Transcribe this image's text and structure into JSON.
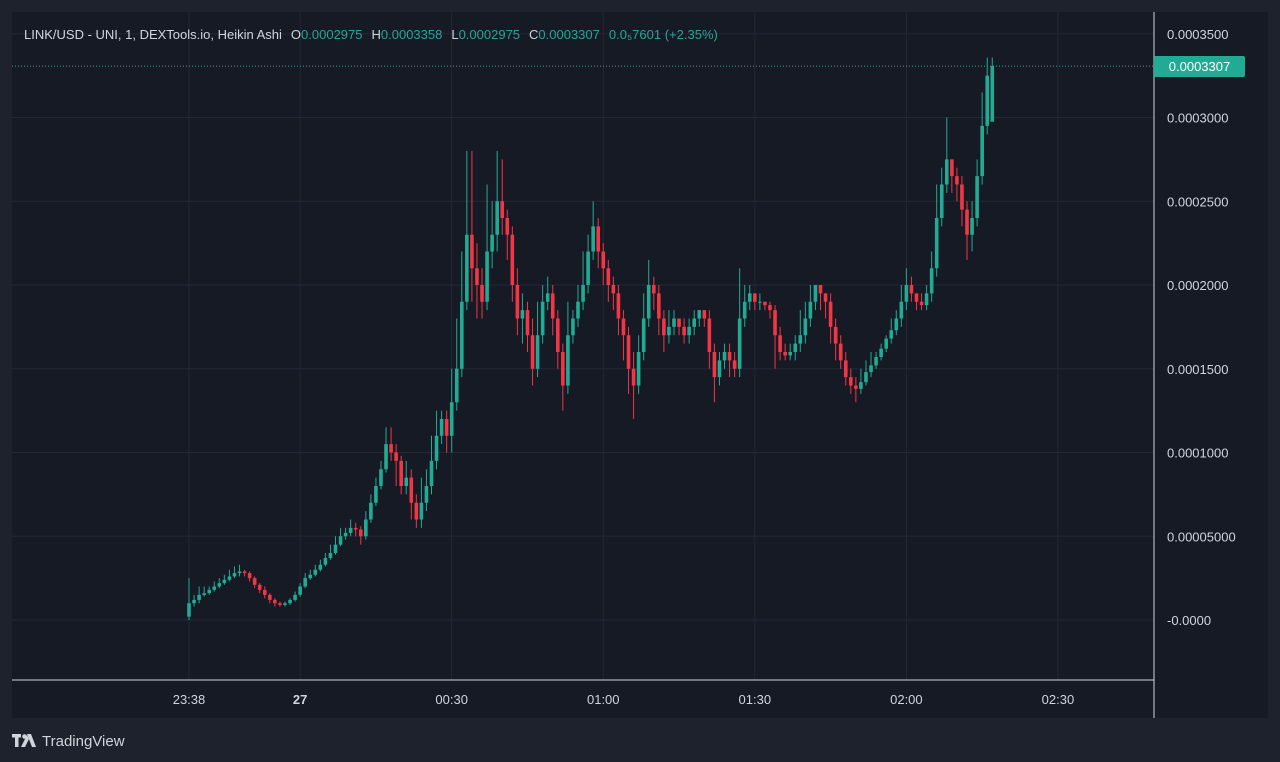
{
  "legend": {
    "symbol": "LINK/USD - UNI, 1, DEXTools.io, Heikin Ashi",
    "open_label": "O",
    "open": "0.0002975",
    "high_label": "H",
    "high": "0.0003358",
    "low_label": "L",
    "low": "0.0002975",
    "close_label": "C",
    "close": "0.0003307",
    "change": "0.0₅7601 (+2.35%)"
  },
  "last_price": "0.0003307",
  "footer": {
    "brand": "TradingView"
  },
  "colors": {
    "up": "#22ab94",
    "down": "#f23645",
    "background": "#161a25",
    "grid": "#242836"
  },
  "chart_data": {
    "type": "candlestick",
    "style": "Heikin Ashi",
    "interval_minutes": 1,
    "y_ticks": [
      {
        "value": 0.00035,
        "label": "0.0003500"
      },
      {
        "value": 0.0003,
        "label": "0.0003000"
      },
      {
        "value": 0.00025,
        "label": "0.0002500"
      },
      {
        "value": 0.0002,
        "label": "0.0002000"
      },
      {
        "value": 0.00015,
        "label": "0.0001500"
      },
      {
        "value": 0.0001,
        "label": "0.0001000"
      },
      {
        "value": 5e-05,
        "label": "0.00005000"
      },
      {
        "value": 0,
        "label": "-0.0000"
      }
    ],
    "x_ticks": [
      {
        "time": "23:38",
        "label": "23:38",
        "bold": false
      },
      {
        "time": "00:00",
        "label": "27",
        "bold": true
      },
      {
        "time": "00:30",
        "label": "00:30",
        "bold": false
      },
      {
        "time": "01:00",
        "label": "01:00",
        "bold": false
      },
      {
        "time": "01:30",
        "label": "01:30",
        "bold": false
      },
      {
        "time": "02:00",
        "label": "02:00",
        "bold": false
      },
      {
        "time": "02:30",
        "label": "02:30",
        "bold": false
      }
    ],
    "ylim": [
      -2e-05,
      0.00036
    ],
    "first_time": "23:38",
    "candles": [
      [
        2e-06,
        1e-05,
        2.5e-05,
        0.0
      ],
      [
        1e-05,
        1.2e-05,
        1.5e-05,
        8e-06
      ],
      [
        1.2e-05,
        1.5e-05,
        2e-05,
        1e-05
      ],
      [
        1.5e-05,
        1.6e-05,
        2e-05,
        1.4e-05
      ],
      [
        1.6e-05,
        1.8e-05,
        2e-05,
        1.5e-05
      ],
      [
        1.8e-05,
        2e-05,
        2.3e-05,
        1.7e-05
      ],
      [
        2e-05,
        2.2e-05,
        2.5e-05,
        1.9e-05
      ],
      [
        2.2e-05,
        2.4e-05,
        2.7e-05,
        2.1e-05
      ],
      [
        2.4e-05,
        2.6e-05,
        3e-05,
        2.3e-05
      ],
      [
        2.6e-05,
        2.8e-05,
        3.2e-05,
        2.5e-05
      ],
      [
        2.8e-05,
        2.9e-05,
        3.3e-05,
        2.6e-05
      ],
      [
        2.9e-05,
        2.8e-05,
        3e-05,
        2.6e-05
      ],
      [
        2.8e-05,
        2.5e-05,
        2.9e-05,
        2.3e-05
      ],
      [
        2.5e-05,
        2.1e-05,
        2.6e-05,
        1.9e-05
      ],
      [
        2.1e-05,
        1.8e-05,
        2.2e-05,
        1.6e-05
      ],
      [
        1.8e-05,
        1.5e-05,
        2e-05,
        1.3e-05
      ],
      [
        1.5e-05,
        1.2e-05,
        1.6e-05,
        1e-05
      ],
      [
        1.2e-05,
        1e-05,
        1.3e-05,
        8e-06
      ],
      [
        1e-05,
        9e-06,
        1.1e-05,
        8e-06
      ],
      [
        9e-06,
        1e-05,
        1.1e-05,
        8e-06
      ],
      [
        1e-05,
        1.2e-05,
        1.3e-05,
        9e-06
      ],
      [
        1.2e-05,
        1.5e-05,
        1.7e-05,
        1.1e-05
      ],
      [
        1.5e-05,
        2e-05,
        2.2e-05,
        1.4e-05
      ],
      [
        2e-05,
        2.5e-05,
        2.8e-05,
        1.9e-05
      ],
      [
        2.5e-05,
        2.7e-05,
        3e-05,
        2.4e-05
      ],
      [
        2.7e-05,
        3e-05,
        3.3e-05,
        2.6e-05
      ],
      [
        3e-05,
        3.3e-05,
        3.6e-05,
        2.9e-05
      ],
      [
        3.3e-05,
        3.7e-05,
        4e-05,
        3.2e-05
      ],
      [
        3.7e-05,
        4e-05,
        4.5e-05,
        3.6e-05
      ],
      [
        4e-05,
        4.5e-05,
        5e-05,
        3.9e-05
      ],
      [
        4.5e-05,
        5e-05,
        5.5e-05,
        4.4e-05
      ],
      [
        5e-05,
        5.2e-05,
        5.5e-05,
        4.8e-05
      ],
      [
        5.2e-05,
        5.5e-05,
        6e-05,
        5e-05
      ],
      [
        5.5e-05,
        5.4e-05,
        5.8e-05,
        5e-05
      ],
      [
        5.4e-05,
        5e-05,
        5.6e-05,
        4.5e-05
      ],
      [
        5e-05,
        6e-05,
        6.5e-05,
        4.8e-05
      ],
      [
        6e-05,
        7e-05,
        7.5e-05,
        5.8e-05
      ],
      [
        7e-05,
        8e-05,
        8.5e-05,
        6.8e-05
      ],
      [
        8e-05,
        9e-05,
        9.5e-05,
        7.8e-05
      ],
      [
        9e-05,
        0.000105,
        0.000115,
        8.8e-05
      ],
      [
        0.000105,
        0.0001,
        0.000115,
        9.5e-05
      ],
      [
        0.0001,
        9.5e-05,
        0.000105,
        8e-05
      ],
      [
        9.5e-05,
        8e-05,
        9.8e-05,
        7.5e-05
      ],
      [
        8e-05,
        8.5e-05,
        9.5e-05,
        7.5e-05
      ],
      [
        8.5e-05,
        7e-05,
        9e-05,
        6e-05
      ],
      [
        7e-05,
        6e-05,
        7.5e-05,
        5.5e-05
      ],
      [
        6e-05,
        7e-05,
        8.5e-05,
        5.5e-05
      ],
      [
        7e-05,
        8e-05,
        9e-05,
        6.5e-05
      ],
      [
        8e-05,
        9.5e-05,
        0.00011,
        7.5e-05
      ],
      [
        9.5e-05,
        0.00011,
        0.000125,
        9e-05
      ],
      [
        0.00011,
        0.00012,
        0.000125,
        0.000105
      ],
      [
        0.00012,
        0.00011,
        0.000125,
        0.0001
      ],
      [
        0.00011,
        0.00013,
        0.00015,
        0.0001
      ],
      [
        0.00013,
        0.00015,
        0.00018,
        0.000125
      ],
      [
        0.00015,
        0.00019,
        0.00022,
        0.000145
      ],
      [
        0.00019,
        0.00023,
        0.00028,
        0.000185
      ],
      [
        0.00023,
        0.00021,
        0.00028,
        0.00019
      ],
      [
        0.00021,
        0.0002,
        0.000225,
        0.00018
      ],
      [
        0.0002,
        0.00019,
        0.00021,
        0.00018
      ],
      [
        0.00019,
        0.00022,
        0.00026,
        0.000185
      ],
      [
        0.00022,
        0.00023,
        0.00025,
        0.00021
      ],
      [
        0.00023,
        0.00025,
        0.00028,
        0.00022
      ],
      [
        0.00025,
        0.00024,
        0.000275,
        0.00023
      ],
      [
        0.00024,
        0.00023,
        0.000245,
        0.000215
      ],
      [
        0.00023,
        0.0002,
        0.000235,
        0.00019
      ],
      [
        0.0002,
        0.00018,
        0.00021,
        0.00017
      ],
      [
        0.00018,
        0.000185,
        0.000195,
        0.000165
      ],
      [
        0.000185,
        0.00017,
        0.00019,
        0.00016
      ],
      [
        0.00017,
        0.00015,
        0.00018,
        0.00014
      ],
      [
        0.00015,
        0.00017,
        0.00019,
        0.000145
      ],
      [
        0.00017,
        0.00019,
        0.0002,
        0.000165
      ],
      [
        0.00019,
        0.000195,
        0.000205,
        0.000185
      ],
      [
        0.000195,
        0.00018,
        0.0002,
        0.00017
      ],
      [
        0.00018,
        0.00016,
        0.000185,
        0.00015
      ],
      [
        0.00016,
        0.00014,
        0.000165,
        0.000125
      ],
      [
        0.00014,
        0.00017,
        0.00019,
        0.000135
      ],
      [
        0.00017,
        0.00018,
        0.000185,
        0.000165
      ],
      [
        0.00018,
        0.00019,
        0.0002,
        0.000175
      ],
      [
        0.00019,
        0.0002,
        0.00022,
        0.000185
      ],
      [
        0.0002,
        0.00022,
        0.00023,
        0.000195
      ],
      [
        0.00022,
        0.000235,
        0.00025,
        0.000215
      ],
      [
        0.000235,
        0.00022,
        0.00024,
        0.00021
      ],
      [
        0.00022,
        0.00021,
        0.000225,
        0.0002
      ],
      [
        0.00021,
        0.0002,
        0.000215,
        0.00019
      ],
      [
        0.0002,
        0.000195,
        0.000205,
        0.000185
      ],
      [
        0.000195,
        0.00018,
        0.0002,
        0.00017
      ],
      [
        0.00018,
        0.00017,
        0.000185,
        0.000155
      ],
      [
        0.00017,
        0.00015,
        0.000175,
        0.000135
      ],
      [
        0.00015,
        0.00014,
        0.00016,
        0.00012
      ],
      [
        0.00014,
        0.00016,
        0.00017,
        0.000135
      ],
      [
        0.00016,
        0.00018,
        0.000195,
        0.000155
      ],
      [
        0.00018,
        0.0002,
        0.000215,
        0.000175
      ],
      [
        0.0002,
        0.000195,
        0.000205,
        0.000185
      ],
      [
        0.000195,
        0.00018,
        0.0002,
        0.00017
      ],
      [
        0.00018,
        0.00017,
        0.000185,
        0.00016
      ],
      [
        0.00017,
        0.000175,
        0.000185,
        0.000165
      ],
      [
        0.000175,
        0.00018,
        0.000185,
        0.00017
      ],
      [
        0.00018,
        0.000175,
        0.00018,
        0.00017
      ],
      [
        0.000175,
        0.00017,
        0.00018,
        0.000165
      ],
      [
        0.00017,
        0.000175,
        0.00018,
        0.000165
      ],
      [
        0.000175,
        0.00018,
        0.000185,
        0.00017
      ],
      [
        0.00018,
        0.000185,
        0.000185,
        0.000175
      ],
      [
        0.000185,
        0.00018,
        0.000185,
        0.000175
      ],
      [
        0.00018,
        0.00016,
        0.000185,
        0.00015
      ],
      [
        0.00016,
        0.000145,
        0.000165,
        0.00013
      ],
      [
        0.000145,
        0.000155,
        0.00016,
        0.00014
      ],
      [
        0.000155,
        0.00016,
        0.000165,
        0.00015
      ],
      [
        0.00016,
        0.000155,
        0.000165,
        0.000145
      ],
      [
        0.000155,
        0.00015,
        0.00016,
        0.000145
      ],
      [
        0.00015,
        0.00018,
        0.00021,
        0.000145
      ],
      [
        0.00018,
        0.00019,
        0.0002,
        0.000175
      ],
      [
        0.00019,
        0.000195,
        0.0002,
        0.000185
      ],
      [
        0.000195,
        0.00019,
        0.000195,
        0.000185
      ],
      [
        0.00019,
        0.00019,
        0.000195,
        0.000185
      ],
      [
        0.00019,
        0.000188,
        0.00019,
        0.000185
      ],
      [
        0.000188,
        0.000185,
        0.00019,
        0.00018
      ],
      [
        0.000185,
        0.00017,
        0.000188,
        0.00015
      ],
      [
        0.00017,
        0.00016,
        0.000175,
        0.000155
      ],
      [
        0.00016,
        0.000158,
        0.000165,
        0.000155
      ],
      [
        0.000158,
        0.00016,
        0.000165,
        0.000155
      ],
      [
        0.00016,
        0.000165,
        0.00017,
        0.000155
      ],
      [
        0.000165,
        0.00017,
        0.000185,
        0.00016
      ],
      [
        0.00017,
        0.00018,
        0.00019,
        0.000165
      ],
      [
        0.00018,
        0.00019,
        0.0002,
        0.000175
      ],
      [
        0.00019,
        0.0002,
        0.0002,
        0.000185
      ],
      [
        0.0002,
        0.000195,
        0.0002,
        0.000185
      ],
      [
        0.000195,
        0.00019,
        0.000195,
        0.00018
      ],
      [
        0.00019,
        0.000175,
        0.000195,
        0.000165
      ],
      [
        0.000175,
        0.000165,
        0.00018,
        0.000155
      ],
      [
        0.000165,
        0.000155,
        0.00017,
        0.00015
      ],
      [
        0.000155,
        0.000145,
        0.00016,
        0.00014
      ],
      [
        0.000145,
        0.00014,
        0.00015,
        0.000135
      ],
      [
        0.00014,
        0.000138,
        0.000145,
        0.00013
      ],
      [
        0.000138,
        0.000142,
        0.00015,
        0.000135
      ],
      [
        0.000142,
        0.000148,
        0.000155,
        0.00014
      ],
      [
        0.000148,
        0.000152,
        0.00016,
        0.000145
      ],
      [
        0.000152,
        0.000157,
        0.00016,
        0.00015
      ],
      [
        0.000157,
        0.000162,
        0.000165,
        0.000155
      ],
      [
        0.000162,
        0.000168,
        0.00017,
        0.00016
      ],
      [
        0.000168,
        0.000173,
        0.00018,
        0.000165
      ],
      [
        0.000173,
        0.00018,
        0.000185,
        0.00017
      ],
      [
        0.00018,
        0.00019,
        0.0002,
        0.000175
      ],
      [
        0.00019,
        0.0002,
        0.00021,
        0.000185
      ],
      [
        0.0002,
        0.000195,
        0.000205,
        0.00019
      ],
      [
        0.000195,
        0.00019,
        0.000195,
        0.000185
      ],
      [
        0.00019,
        0.000188,
        0.000195,
        0.000185
      ],
      [
        0.000188,
        0.000195,
        0.0002,
        0.000185
      ],
      [
        0.000195,
        0.00021,
        0.00022,
        0.00019
      ],
      [
        0.00021,
        0.00024,
        0.00026,
        0.000205
      ],
      [
        0.00024,
        0.00026,
        0.00027,
        0.000235
      ],
      [
        0.00026,
        0.000275,
        0.0003,
        0.000255
      ],
      [
        0.000275,
        0.000265,
        0.000275,
        0.000255
      ],
      [
        0.000265,
        0.00026,
        0.00027,
        0.00025
      ],
      [
        0.00026,
        0.000245,
        0.000265,
        0.000235
      ],
      [
        0.000245,
        0.00023,
        0.00025,
        0.000215
      ],
      [
        0.00023,
        0.00024,
        0.00025,
        0.00022
      ],
      [
        0.00024,
        0.000265,
        0.000275,
        0.000235
      ],
      [
        0.000265,
        0.000295,
        0.000315,
        0.00026
      ],
      [
        0.000295,
        0.000325,
        0.0003358,
        0.00029
      ],
      [
        0.0002975,
        0.0003307,
        0.0003358,
        0.0002975
      ]
    ]
  }
}
